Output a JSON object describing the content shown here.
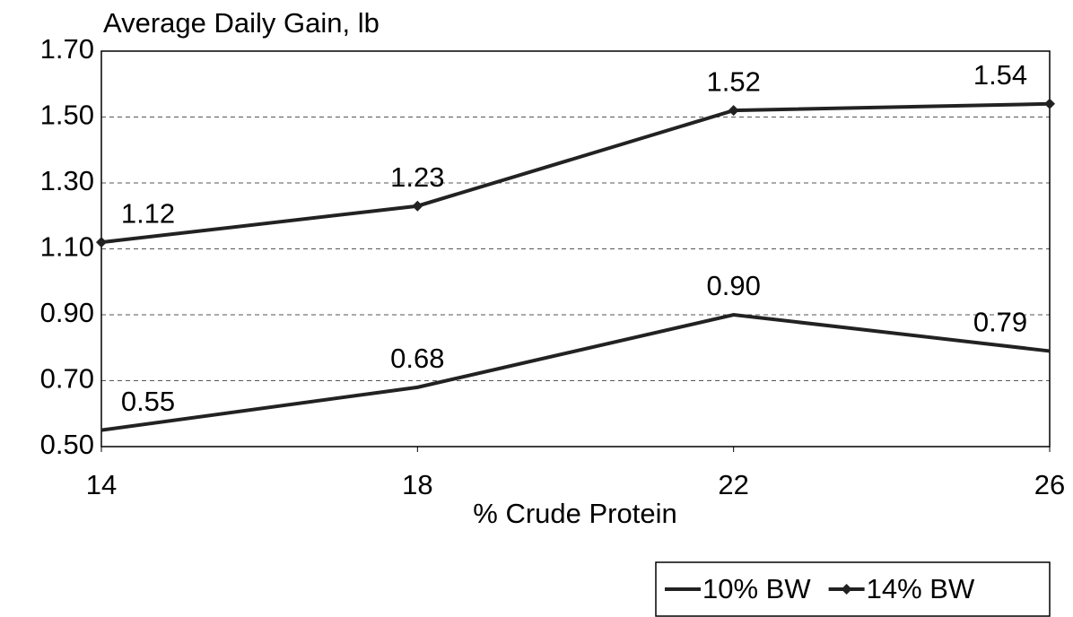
{
  "chart_data": {
    "type": "line",
    "title": "Average Daily Gain, lb",
    "x_label": "% Crude Protein",
    "x": [
      14,
      18,
      22,
      26
    ],
    "xlim": [
      14,
      26
    ],
    "xticks": [
      14,
      18,
      22,
      26
    ],
    "ylim": [
      0.5,
      1.7
    ],
    "yticks": [
      {
        "value": 0.5,
        "label": "0.50"
      },
      {
        "value": 0.7,
        "label": "0.70"
      },
      {
        "value": 0.9,
        "label": "0.90"
      },
      {
        "value": 1.1,
        "label": "1.10"
      },
      {
        "value": 1.3,
        "label": "1.30"
      },
      {
        "value": 1.5,
        "label": "1.50"
      },
      {
        "value": 1.7,
        "label": "1.70"
      }
    ],
    "grid": true,
    "legend": "bottom-right",
    "series": [
      {
        "name": "10% BW",
        "color": "#222222",
        "marker": "none",
        "values": [
          0.55,
          0.68,
          0.9,
          0.79
        ],
        "value_labels": [
          "0.55",
          "0.68",
          "0.90",
          "0.79"
        ]
      },
      {
        "name": "14% BW",
        "color": "#222222",
        "marker": "diamond",
        "values": [
          1.12,
          1.23,
          1.52,
          1.54
        ],
        "value_labels": [
          "1.12",
          "1.23",
          "1.52",
          "1.54"
        ]
      }
    ]
  }
}
